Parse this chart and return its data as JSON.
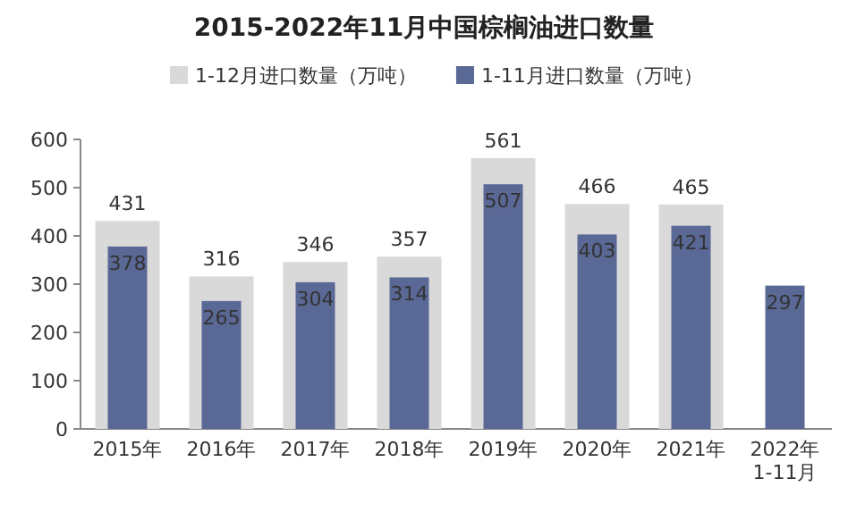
{
  "chart_data": {
    "type": "bar",
    "title": "2015-2022年11月中国棕榈油进口数量",
    "categories": [
      "2015年",
      "2016年",
      "2017年",
      "2018年",
      "2019年",
      "2020年",
      "2021年",
      "2022年\n1-11月"
    ],
    "series": [
      {
        "name": "1-12月进口数量（万吨）",
        "color": "#d9d9d9",
        "values": [
          431,
          316,
          346,
          357,
          561,
          466,
          465,
          null
        ]
      },
      {
        "name": "1-11月进口数量（万吨）",
        "color": "#5a6896",
        "values": [
          378,
          265,
          304,
          314,
          507,
          403,
          421,
          297
        ]
      }
    ],
    "ylim": [
      0,
      600
    ],
    "yticks": [
      0,
      100,
      200,
      300,
      400,
      500,
      600
    ],
    "data_labels": true,
    "legend": "top",
    "grid": false
  }
}
